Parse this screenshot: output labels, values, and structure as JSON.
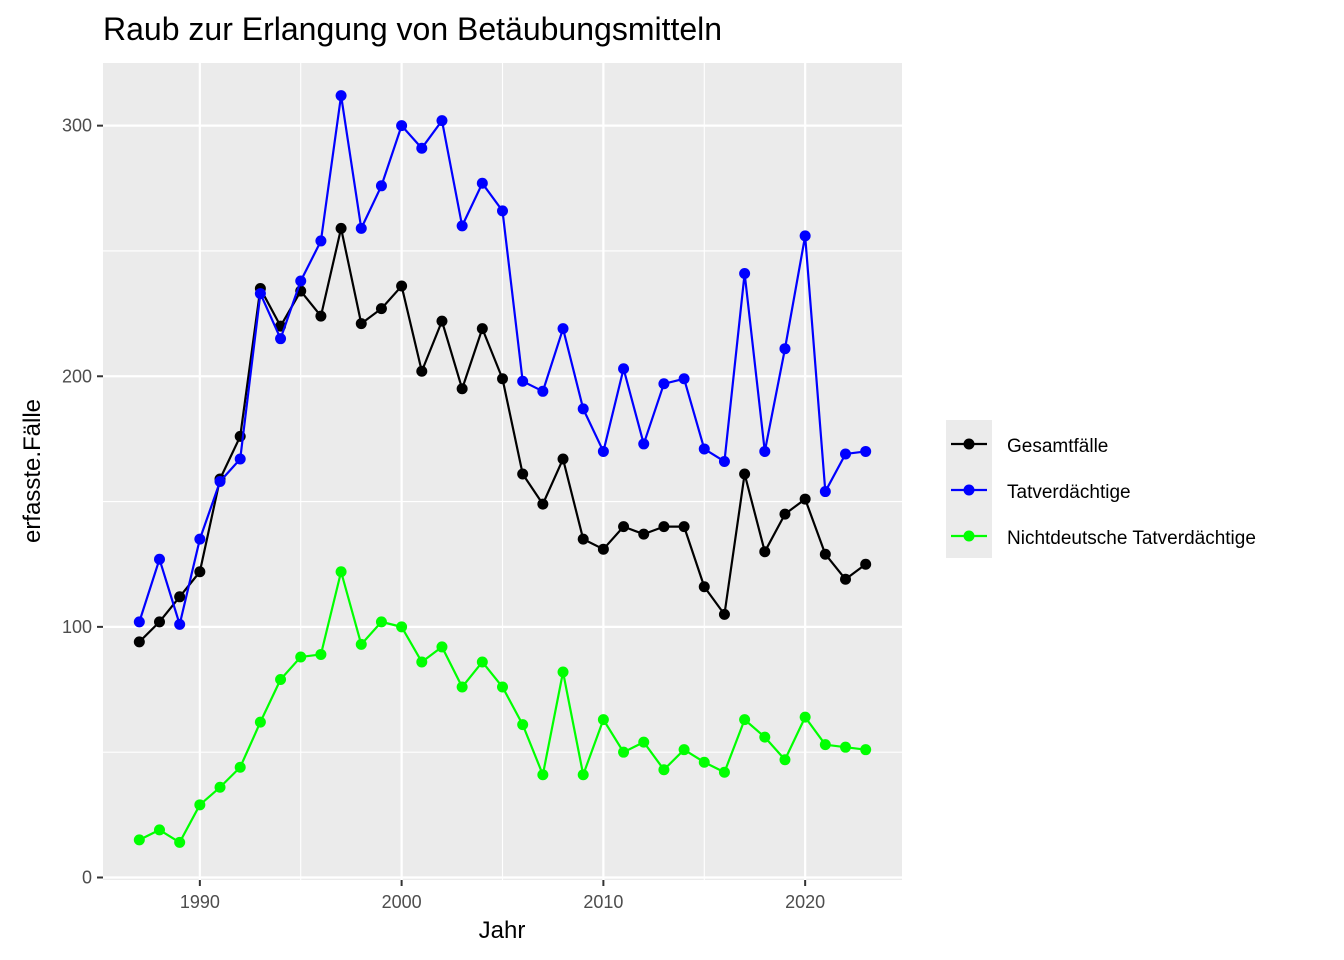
{
  "chart_data": {
    "type": "line",
    "title": "Raub zur Erlangung von Betäubungsmitteln",
    "xlabel": "Jahr",
    "ylabel": "erfasste.Fälle",
    "xlim": [
      1985.2,
      2024.8
    ],
    "ylim": [
      -1,
      325
    ],
    "x_ticks": [
      1990,
      2000,
      2010,
      2020
    ],
    "y_ticks": [
      0,
      100,
      200,
      300
    ],
    "grid": true,
    "legend_position": "right",
    "x": [
      1987,
      1988,
      1989,
      1990,
      1991,
      1992,
      1993,
      1994,
      1995,
      1996,
      1997,
      1998,
      1999,
      2000,
      2001,
      2002,
      2003,
      2004,
      2005,
      2006,
      2007,
      2008,
      2009,
      2010,
      2011,
      2012,
      2013,
      2014,
      2015,
      2016,
      2017,
      2018,
      2019,
      2020,
      2021,
      2022,
      2023
    ],
    "series": [
      {
        "name": "Gesamtfälle",
        "color": "#000000",
        "values": [
          94,
          102,
          112,
          122,
          159,
          176,
          235,
          220,
          234,
          224,
          259,
          221,
          227,
          236,
          202,
          222,
          195,
          219,
          199,
          161,
          149,
          167,
          135,
          131,
          140,
          137,
          140,
          140,
          116,
          105,
          161,
          130,
          145,
          151,
          129,
          119,
          125
        ]
      },
      {
        "name": "Tatverdächtige",
        "color": "#0000ff",
        "values": [
          102,
          127,
          101,
          135,
          158,
          167,
          233,
          215,
          238,
          254,
          312,
          259,
          276,
          300,
          291,
          302,
          260,
          277,
          266,
          198,
          194,
          219,
          187,
          170,
          203,
          173,
          197,
          199,
          171,
          166,
          241,
          170,
          211,
          256,
          154,
          169,
          170
        ]
      },
      {
        "name": "Nichtdeutsche Tatverdächtige",
        "color": "#00ff00",
        "values": [
          15,
          19,
          14,
          29,
          36,
          44,
          62,
          79,
          88,
          89,
          122,
          93,
          102,
          100,
          86,
          92,
          76,
          86,
          76,
          61,
          41,
          82,
          41,
          63,
          50,
          54,
          43,
          51,
          46,
          42,
          63,
          56,
          47,
          64,
          53,
          52,
          51
        ]
      }
    ]
  },
  "colors": {
    "panel_background": "#ebebeb",
    "gridline": "#ffffff",
    "tick": "#333333",
    "tick_label": "#4d4d4d"
  }
}
